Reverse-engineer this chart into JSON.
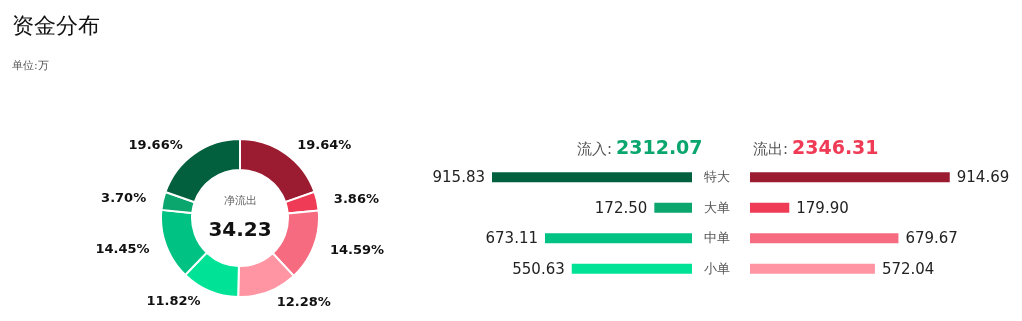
{
  "chart_data": [
    {
      "type": "donut",
      "title": "资金分布",
      "subtitle": "单位:万",
      "categories": [
        null,
        null,
        null,
        null,
        null,
        null,
        null,
        null
      ],
      "values": [
        19.64,
        3.86,
        14.59,
        12.28,
        11.82,
        14.45,
        3.7,
        19.66
      ],
      "colors": [
        "#9b1b30",
        "#ef3b56",
        "#f66b80",
        "#ff95a3",
        "#00e396",
        "#00c283",
        "#0aa66e",
        "#03603f"
      ],
      "value_labels": [
        "19.64%",
        "3.86%",
        "14.59%",
        "12.28%",
        "11.82%",
        "14.45%",
        "3.70%",
        "19.66%"
      ],
      "annotations": [
        "净流出",
        "34.23"
      ]
    },
    {
      "type": "bar",
      "orientation": "horizontal",
      "categories": [
        "特大",
        "大单",
        "中单",
        "小单"
      ],
      "series": [
        {
          "name": "流入:",
          "values": [
            915.83,
            172.5,
            673.11,
            550.63
          ],
          "colors": [
            "#03603f",
            "#0aa66e",
            "#00c283",
            "#00e396"
          ],
          "value_labels": [
            "915.83",
            "172.50",
            "673.11",
            "550.63"
          ]
        }
      ],
      "annotations": [
        "2312.07"
      ]
    },
    {
      "type": "bar",
      "orientation": "horizontal",
      "categories": [
        null,
        null,
        null,
        null
      ],
      "tick_labels": false,
      "series": [
        {
          "name": "流出:",
          "values": [
            914.69,
            179.9,
            679.67,
            572.04
          ],
          "colors": [
            "#9b1b30",
            "#ef3b56",
            "#f66b80",
            "#ff95a3"
          ],
          "value_labels": [
            "914.69",
            "179.90",
            "679.67",
            "572.04"
          ]
        }
      ],
      "annotations": [
        "2346.31"
      ]
    }
  ]
}
